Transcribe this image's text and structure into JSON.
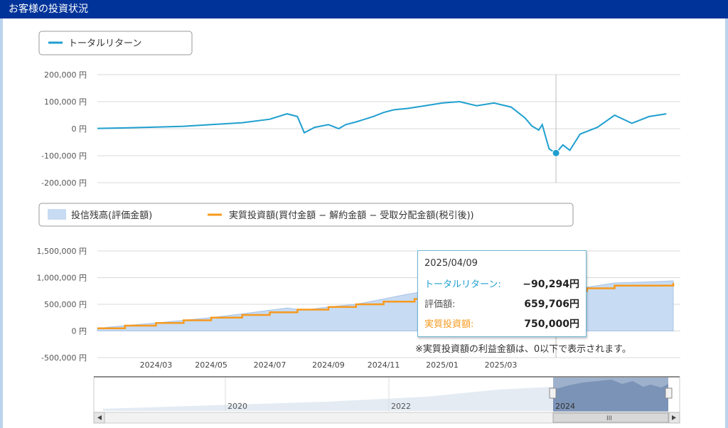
{
  "header": {
    "title": "お客様の投資状況"
  },
  "legend_top": {
    "label": "トータルリターン",
    "color": "#1f9fcf"
  },
  "legend_bottom": {
    "items": [
      {
        "label": "投信残高(評価金額)",
        "color": "#c7dbf2"
      },
      {
        "label": "実質投資額(買付金額 − 解約金額 − 受取分配金額(税引後))",
        "color": "#f79a1e"
      }
    ]
  },
  "tooltip": {
    "date": "2025/04/09",
    "rows": [
      {
        "key": "トータルリターン:",
        "value": "−90,294円",
        "color": "#1f9fcf"
      },
      {
        "key": "評価額:",
        "value": "659,706円",
        "color": "#555555"
      },
      {
        "key": "実質投資額:",
        "value": "750,000円",
        "color": "#f79a1e"
      }
    ]
  },
  "note": "※実質投資額の利益金額は、0以下で表示されます。",
  "navigator": {
    "labels": [
      "2020",
      "2022",
      "2024"
    ],
    "scroll_label": "III"
  },
  "chart_data": [
    {
      "type": "line",
      "series": [
        {
          "name": "トータルリターン",
          "points": [
            [
              2024.0,
              1000
            ],
            [
              2024.08,
              3000
            ],
            [
              2024.17,
              6000
            ],
            [
              2024.25,
              9000
            ],
            [
              2024.33,
              15000
            ],
            [
              2024.42,
              22000
            ],
            [
              2024.5,
              35000
            ],
            [
              2024.55,
              55000
            ],
            [
              2024.58,
              45000
            ],
            [
              2024.6,
              -15000
            ],
            [
              2024.63,
              5000
            ],
            [
              2024.67,
              15000
            ],
            [
              2024.7,
              0
            ],
            [
              2024.72,
              15000
            ],
            [
              2024.75,
              25000
            ],
            [
              2024.8,
              45000
            ],
            [
              2024.83,
              60000
            ],
            [
              2024.86,
              70000
            ],
            [
              2024.9,
              75000
            ],
            [
              2024.95,
              85000
            ],
            [
              2025.0,
              95000
            ],
            [
              2025.05,
              100000
            ],
            [
              2025.1,
              85000
            ],
            [
              2025.15,
              95000
            ],
            [
              2025.2,
              80000
            ],
            [
              2025.24,
              40000
            ],
            [
              2025.26,
              10000
            ],
            [
              2025.28,
              -5000
            ],
            [
              2025.29,
              15000
            ],
            [
              2025.3,
              -30000
            ],
            [
              2025.31,
              -75000
            ],
            [
              2025.33,
              -90294
            ],
            [
              2025.35,
              -60000
            ],
            [
              2025.37,
              -80000
            ],
            [
              2025.4,
              -20000
            ],
            [
              2025.45,
              5000
            ],
            [
              2025.5,
              50000
            ],
            [
              2025.55,
              20000
            ],
            [
              2025.6,
              45000
            ],
            [
              2025.65,
              55000
            ]
          ]
        }
      ],
      "ylim": [
        -200000,
        200000
      ],
      "yticks": [
        200000,
        100000,
        0,
        -100000,
        -200000
      ],
      "ytick_labels": [
        "200,000 円",
        "100,000 円",
        "0 円",
        "-100,000 円",
        "-200,000 円"
      ],
      "xlim": [
        2024.0,
        2025.67
      ],
      "highlight": {
        "x": 2025.33,
        "y": -90294
      }
    },
    {
      "type": "area",
      "series": [
        {
          "name": "投信残高(評価金額)",
          "points": [
            [
              2024.0,
              50000
            ],
            [
              2024.08,
              100000
            ],
            [
              2024.17,
              150000
            ],
            [
              2024.25,
              200000
            ],
            [
              2024.33,
              250000
            ],
            [
              2024.42,
              320000
            ],
            [
              2024.5,
              390000
            ],
            [
              2024.55,
              430000
            ],
            [
              2024.6,
              390000
            ],
            [
              2024.67,
              450000
            ],
            [
              2024.75,
              500000
            ],
            [
              2024.83,
              600000
            ],
            [
              2024.9,
              690000
            ],
            [
              2025.0,
              790000
            ],
            [
              2025.1,
              840000
            ],
            [
              2025.2,
              860000
            ],
            [
              2025.25,
              790000
            ],
            [
              2025.33,
              659706
            ],
            [
              2025.4,
              800000
            ],
            [
              2025.5,
              900000
            ],
            [
              2025.6,
              920000
            ],
            [
              2025.67,
              940000
            ]
          ]
        },
        {
          "name": "実質投資額(買付金額 − 解約金額 − 受取分配金額(税引後))",
          "points": [
            [
              2024.0,
              50000
            ],
            [
              2024.08,
              100000
            ],
            [
              2024.17,
              150000
            ],
            [
              2024.25,
              200000
            ],
            [
              2024.33,
              250000
            ],
            [
              2024.42,
              300000
            ],
            [
              2024.5,
              350000
            ],
            [
              2024.58,
              400000
            ],
            [
              2024.67,
              450000
            ],
            [
              2024.75,
              500000
            ],
            [
              2024.83,
              550000
            ],
            [
              2024.92,
              600000
            ],
            [
              2025.0,
              650000
            ],
            [
              2025.08,
              700000
            ],
            [
              2025.17,
              750000
            ],
            [
              2025.25,
              750000
            ],
            [
              2025.33,
              750000
            ],
            [
              2025.42,
              800000
            ],
            [
              2025.5,
              850000
            ],
            [
              2025.58,
              850000
            ],
            [
              2025.67,
              900000
            ]
          ]
        }
      ],
      "ylim": [
        -500000,
        1500000
      ],
      "yticks": [
        1500000,
        1000000,
        500000,
        0,
        -500000
      ],
      "ytick_labels": [
        "1,500,000 円",
        "1,000,000 円",
        "500,000 円",
        "0 円",
        "-500,000 円"
      ],
      "xlim": [
        2024.0,
        2025.67
      ],
      "xticks": [
        2024.17,
        2024.33,
        2024.5,
        2024.67,
        2024.83,
        2025.0,
        2025.17
      ],
      "xtick_labels": [
        "2024/03",
        "2024/05",
        "2024/07",
        "2024/09",
        "2024/11",
        "2025/01",
        "2025/03"
      ],
      "highlight": {
        "x": 2025.33,
        "y": 750000
      }
    }
  ]
}
